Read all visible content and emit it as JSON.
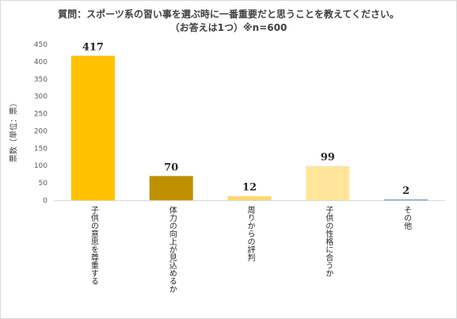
{
  "chart_data": {
    "type": "bar",
    "title": "質問：スポーツ系の習い事を選ぶ時に一番重要だと思うことを教えてください。",
    "subtitle": "（お答えは1つ）※n=600",
    "xlabel": "",
    "ylabel": "票数（単位：票）",
    "ylim": [
      0,
      450
    ],
    "yticks": [
      "0",
      "50",
      "100",
      "150",
      "200",
      "250",
      "300",
      "350",
      "400",
      "450"
    ],
    "categories": [
      "子供の意思を尊重する",
      "体力の向上が見込めるか",
      "周りからの評判",
      "子供の性格に合うか",
      "その他"
    ],
    "values": [
      417,
      70,
      12,
      99,
      2
    ],
    "data_labels": [
      "417",
      "70",
      "12",
      "99",
      "2"
    ],
    "colors": [
      "#ffc000",
      "#bf9000",
      "#ffd966",
      "#ffe699",
      "#5b9bd5"
    ],
    "grid": false,
    "legend": "none"
  }
}
